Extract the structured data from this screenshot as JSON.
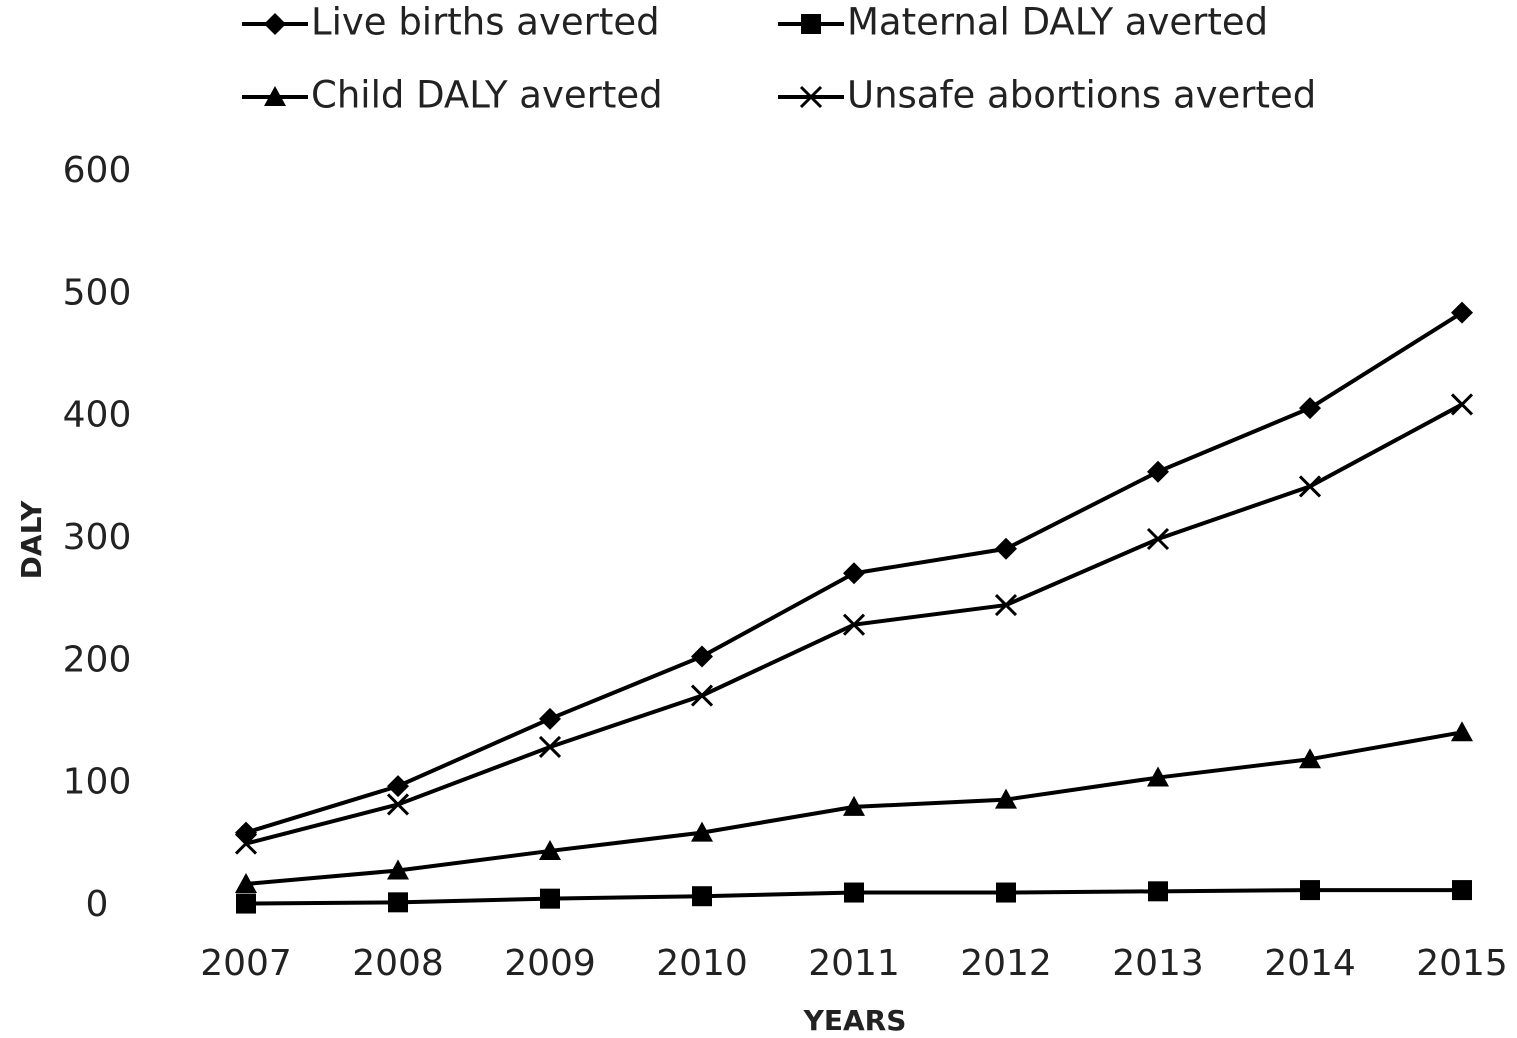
{
  "chart_data": {
    "type": "line",
    "categories": [
      "2007",
      "2008",
      "2009",
      "2010",
      "2011",
      "2012",
      "2013",
      "2014",
      "2015"
    ],
    "series": [
      {
        "name": "Live births averted",
        "color": "#000000",
        "marker": "diamond",
        "values": [
          60,
          98,
          153,
          204,
          272,
          292,
          355,
          407,
          485
        ]
      },
      {
        "name": "Maternal DALY averted",
        "color": "#000000",
        "marker": "square",
        "values": [
          2,
          3,
          6,
          8,
          11,
          11,
          12,
          13,
          13
        ]
      },
      {
        "name": "Child DALY averted",
        "color": "#000000",
        "marker": "triangle",
        "values": [
          18,
          29,
          45,
          60,
          81,
          87,
          105,
          120,
          142
        ]
      },
      {
        "name": "Unsafe abortions averted",
        "color": "#000000",
        "marker": "cross",
        "values": [
          51,
          83,
          130,
          172,
          230,
          246,
          300,
          343,
          410
        ]
      }
    ],
    "ylim": [
      0,
      600
    ],
    "yticks": [
      0,
      100,
      200,
      300,
      400,
      500,
      600
    ],
    "x_label": "YEARS",
    "y_label": "DALY",
    "grid": false
  }
}
